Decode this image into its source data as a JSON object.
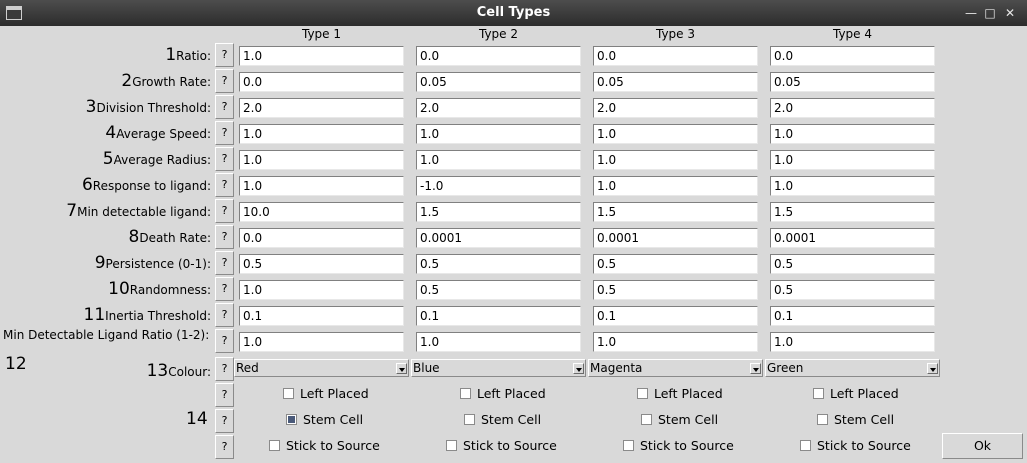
{
  "window": {
    "title": "Cell Types",
    "minimize": "—",
    "maximize": "□",
    "close": "✕"
  },
  "columns": [
    "Type 1",
    "Type 2",
    "Type 3",
    "Type 4"
  ],
  "help_label": "?",
  "rows": [
    {
      "num": "1",
      "label": "Ratio:",
      "values": [
        "1.0",
        "0.0",
        "0.0",
        "0.0"
      ]
    },
    {
      "num": "2",
      "label": "Growth Rate:",
      "values": [
        "0.0",
        "0.05",
        "0.05",
        "0.05"
      ]
    },
    {
      "num": "3",
      "label": "Division Threshold:",
      "values": [
        "2.0",
        "2.0",
        "2.0",
        "2.0"
      ]
    },
    {
      "num": "4",
      "label": "Average Speed:",
      "values": [
        "1.0",
        "1.0",
        "1.0",
        "1.0"
      ]
    },
    {
      "num": "5",
      "label": "Average Radius:",
      "values": [
        "1.0",
        "1.0",
        "1.0",
        "1.0"
      ]
    },
    {
      "num": "6",
      "label": "Response to ligand:",
      "values": [
        "1.0",
        "-1.0",
        "1.0",
        "1.0"
      ]
    },
    {
      "num": "7",
      "label": "Min detectable ligand:",
      "values": [
        "10.0",
        "1.5",
        "1.5",
        "1.5"
      ]
    },
    {
      "num": "8",
      "label": "Death Rate:",
      "values": [
        "0.0",
        "0.0001",
        "0.0001",
        "0.0001"
      ]
    },
    {
      "num": "9",
      "label": "Persistence (0-1):",
      "values": [
        "0.5",
        "0.5",
        "0.5",
        "0.5"
      ]
    },
    {
      "num": "10",
      "label": "Randomness:",
      "values": [
        "1.0",
        "0.5",
        "0.5",
        "0.5"
      ]
    },
    {
      "num": "11",
      "label": "Inertia Threshold:",
      "values": [
        "0.1",
        "0.1",
        "0.1",
        "0.1"
      ]
    },
    {
      "num": "",
      "label": "Min Detectable Ligand Ratio (1-2):",
      "values": [
        "1.0",
        "1.0",
        "1.0",
        "1.0"
      ]
    }
  ],
  "annotation_12": "12",
  "colour": {
    "num": "13",
    "label": "Colour:",
    "values": [
      "Red",
      "Blue",
      "Magenta",
      "Green"
    ]
  },
  "annotation_14": "14",
  "checkbox_rows": [
    {
      "label": "Left Placed",
      "checked": [
        false,
        false,
        false,
        false
      ]
    },
    {
      "label": "Stem Cell",
      "checked": [
        true,
        false,
        false,
        false
      ]
    },
    {
      "label": "Stick to Source",
      "checked": [
        false,
        false,
        false,
        false
      ]
    }
  ],
  "ok_label": "Ok"
}
